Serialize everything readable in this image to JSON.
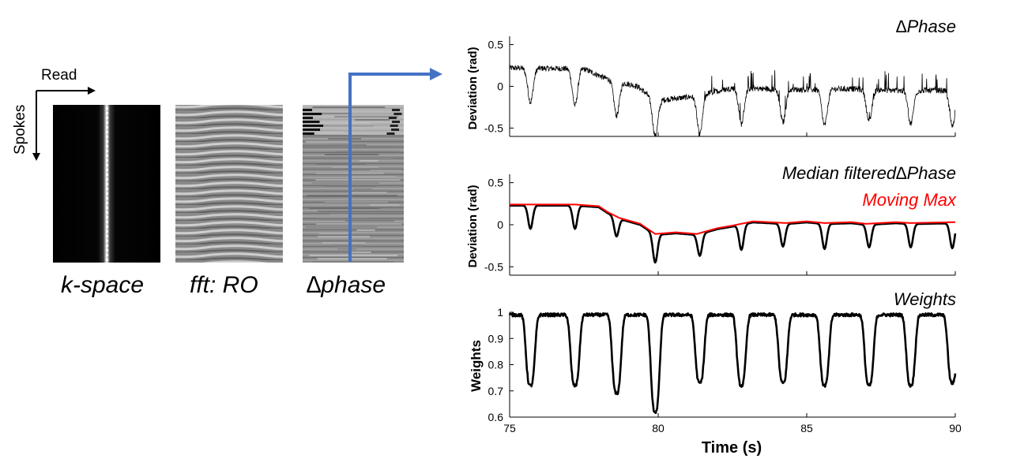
{
  "left_panel": {
    "read_label": "Read",
    "spokes_label": "Spokes",
    "image_captions": [
      "k-space",
      "fft: RO",
      "∆phase"
    ]
  },
  "chart_data": [
    {
      "type": "line",
      "title": "∆Phase",
      "xlabel": "",
      "ylabel": "Deviation (rad)",
      "xlim": [
        75,
        90
      ],
      "ylim": [
        -0.6,
        0.6
      ],
      "yticks": [
        0.5,
        0,
        -0.5
      ],
      "ytick_labels": [
        "0.5",
        "0",
        "-0.5"
      ],
      "grid": false,
      "dip_times": [
        75.7,
        77.2,
        78.6,
        79.9,
        81.4,
        82.8,
        84.2,
        85.6,
        87.1,
        88.5,
        89.9
      ],
      "dip_minima": [
        -0.19,
        -0.23,
        -0.35,
        -0.6,
        -0.58,
        -0.45,
        -0.43,
        -0.47,
        -0.43,
        -0.45,
        -0.48
      ],
      "baseline": [
        {
          "x": 75.0,
          "y": 0.22
        },
        {
          "x": 77.5,
          "y": 0.21
        },
        {
          "x": 78.2,
          "y": 0.1
        },
        {
          "x": 79.3,
          "y": 0.0
        },
        {
          "x": 79.9,
          "y": -0.17
        },
        {
          "x": 81.0,
          "y": -0.13
        },
        {
          "x": 81.7,
          "y": -0.08
        },
        {
          "x": 82.5,
          "y": -0.02
        },
        {
          "x": 83.5,
          "y": -0.03
        },
        {
          "x": 85.0,
          "y": -0.04
        },
        {
          "x": 86.5,
          "y": -0.03
        },
        {
          "x": 88.0,
          "y": -0.05
        },
        {
          "x": 90.0,
          "y": -0.05
        }
      ]
    },
    {
      "type": "line",
      "title": "Median filtered∆Phase",
      "xlabel": "",
      "ylabel": "Deviation (rad)",
      "xlim": [
        75,
        90
      ],
      "ylim": [
        -0.6,
        0.6
      ],
      "yticks": [
        0.5,
        0,
        -0.5
      ],
      "ytick_labels": [
        "0.5",
        "0",
        "-0.5"
      ],
      "grid": false,
      "series": [
        {
          "name": "Median filtered∆Phase",
          "color": "#000000",
          "dip_minima": [
            -0.05,
            -0.05,
            -0.14,
            -0.45,
            -0.37,
            -0.3,
            -0.26,
            -0.29,
            -0.27,
            -0.27,
            -0.28
          ]
        },
        {
          "name": "Moving Max",
          "color": "#ff0000",
          "points": [
            {
              "x": 75.0,
              "y": 0.24
            },
            {
              "x": 76.0,
              "y": 0.24
            },
            {
              "x": 77.2,
              "y": 0.24
            },
            {
              "x": 78.0,
              "y": 0.22
            },
            {
              "x": 78.3,
              "y": 0.15
            },
            {
              "x": 78.7,
              "y": 0.08
            },
            {
              "x": 79.4,
              "y": 0.01
            },
            {
              "x": 79.9,
              "y": -0.11
            },
            {
              "x": 80.6,
              "y": -0.09
            },
            {
              "x": 81.3,
              "y": -0.11
            },
            {
              "x": 82.0,
              "y": -0.04
            },
            {
              "x": 82.5,
              "y": -0.01
            },
            {
              "x": 83.2,
              "y": 0.04
            },
            {
              "x": 84.3,
              "y": 0.02
            },
            {
              "x": 85.0,
              "y": 0.04
            },
            {
              "x": 85.6,
              "y": 0.02
            },
            {
              "x": 86.5,
              "y": 0.03
            },
            {
              "x": 87.0,
              "y": 0.01
            },
            {
              "x": 88.0,
              "y": 0.03
            },
            {
              "x": 88.5,
              "y": 0.02
            },
            {
              "x": 90.0,
              "y": 0.03
            }
          ]
        }
      ]
    },
    {
      "type": "line",
      "title": "Weights",
      "xlabel": "Time (s)",
      "ylabel": "Weights",
      "xlim": [
        75,
        90
      ],
      "ylim": [
        0.6,
        1.0
      ],
      "xticks": [
        75,
        80,
        85,
        90
      ],
      "xtick_labels": [
        "75",
        "80",
        "85",
        "90"
      ],
      "yticks": [
        1.0,
        0.9,
        0.8,
        0.7,
        0.6
      ],
      "ytick_labels": [
        "1",
        "0.9",
        "0.8",
        "0.7",
        "0.6"
      ],
      "grid": false,
      "dip_minima": [
        0.72,
        0.72,
        0.69,
        0.62,
        0.73,
        0.72,
        0.73,
        0.72,
        0.72,
        0.72,
        0.73
      ]
    }
  ],
  "colors": {
    "arrow": "#4472c4",
    "moving_max": "#ff0000",
    "trace": "#000000"
  }
}
